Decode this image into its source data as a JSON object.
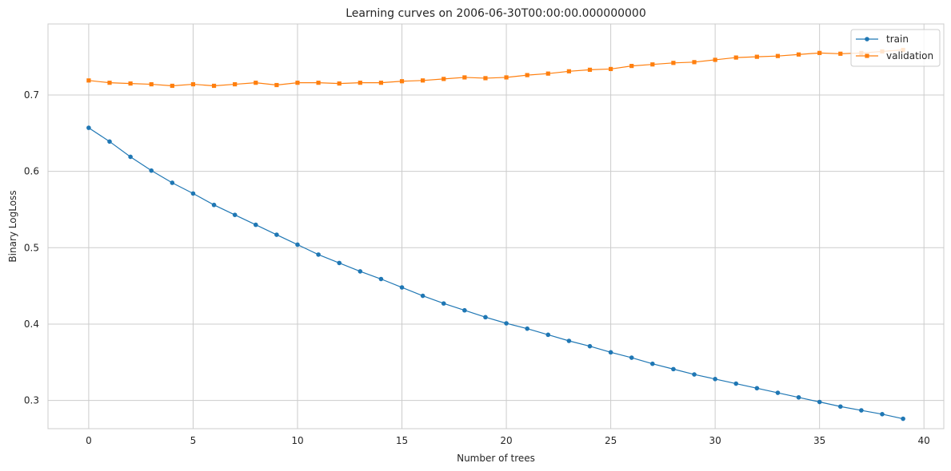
{
  "chart_data": {
    "type": "line",
    "title": "Learning curves on 2006-06-30T00:00:00.000000000",
    "xlabel": "Number of trees",
    "ylabel": "Binary LogLoss",
    "xlim": [
      -1.95,
      40.95
    ],
    "ylim": [
      0.263,
      0.793
    ],
    "xticks": [
      0,
      5,
      10,
      15,
      20,
      25,
      30,
      35,
      40
    ],
    "yticks": [
      0.3,
      0.4,
      0.5,
      0.6,
      0.7
    ],
    "xtick_labels": [
      "0",
      "5",
      "10",
      "15",
      "20",
      "25",
      "30",
      "35",
      "40"
    ],
    "ytick_labels": [
      "0.3",
      "0.4",
      "0.5",
      "0.6",
      "0.7"
    ],
    "grid": true,
    "legend_position": "top-right",
    "x": [
      0,
      1,
      2,
      3,
      4,
      5,
      6,
      7,
      8,
      9,
      10,
      11,
      12,
      13,
      14,
      15,
      16,
      17,
      18,
      19,
      20,
      21,
      22,
      23,
      24,
      25,
      26,
      27,
      28,
      29,
      30,
      31,
      32,
      33,
      34,
      35,
      36,
      37,
      38,
      39
    ],
    "series": [
      {
        "name": "train",
        "color": "#1f77b4",
        "marker": "circle",
        "values": [
          0.657,
          0.639,
          0.619,
          0.601,
          0.585,
          0.571,
          0.556,
          0.543,
          0.53,
          0.517,
          0.504,
          0.491,
          0.48,
          0.469,
          0.459,
          0.448,
          0.437,
          0.427,
          0.418,
          0.409,
          0.401,
          0.394,
          0.386,
          0.378,
          0.371,
          0.363,
          0.356,
          0.348,
          0.341,
          0.334,
          0.328,
          0.322,
          0.316,
          0.31,
          0.304,
          0.298,
          0.292,
          0.287,
          0.282,
          0.276
        ]
      },
      {
        "name": "validation",
        "color": "#ff7f0e",
        "marker": "square",
        "values": [
          0.719,
          0.716,
          0.715,
          0.714,
          0.712,
          0.714,
          0.712,
          0.714,
          0.716,
          0.713,
          0.716,
          0.716,
          0.715,
          0.716,
          0.716,
          0.718,
          0.719,
          0.721,
          0.723,
          0.722,
          0.723,
          0.726,
          0.728,
          0.731,
          0.733,
          0.734,
          0.738,
          0.74,
          0.742,
          0.743,
          0.746,
          0.749,
          0.75,
          0.751,
          0.753,
          0.755,
          0.754,
          0.755,
          0.757,
          0.759
        ]
      }
    ]
  }
}
